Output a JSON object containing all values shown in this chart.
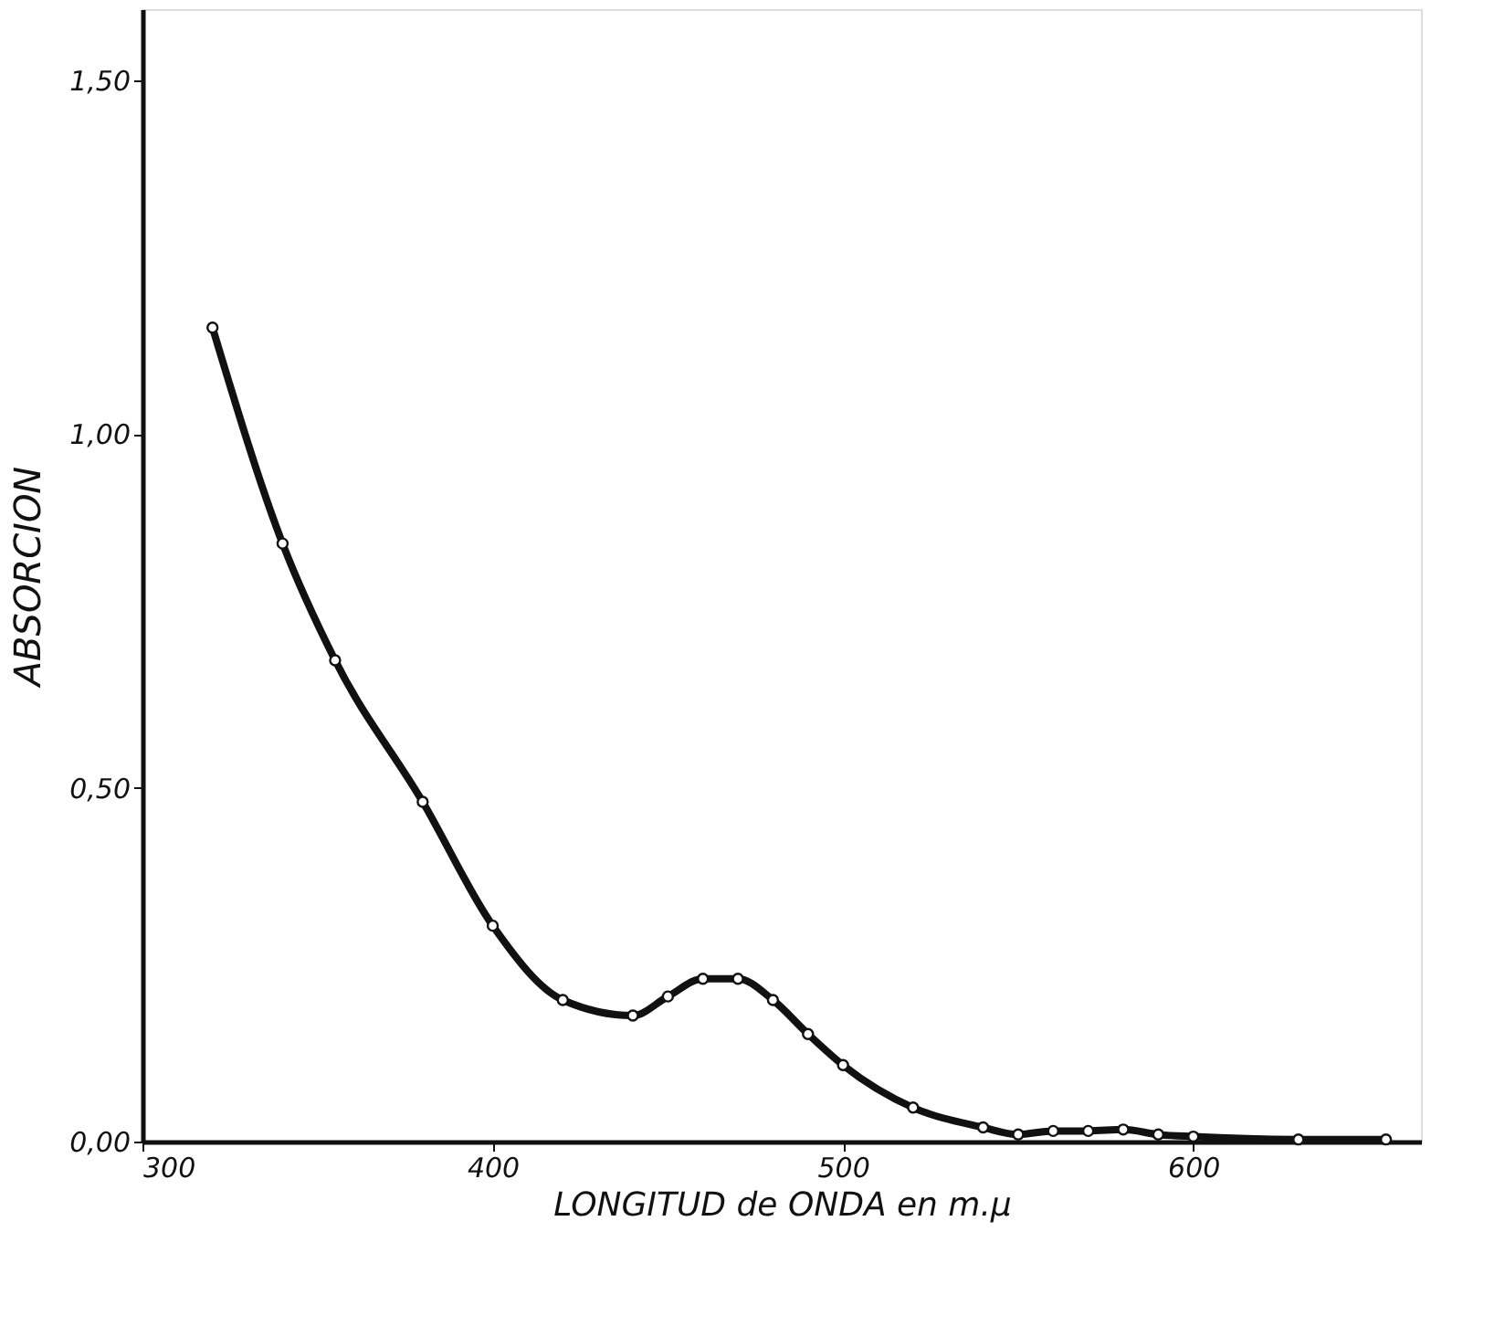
{
  "chart_data": {
    "type": "line",
    "xlabel": "LONGITUD de ONDA en m.μ",
    "ylabel": "ABSORCION",
    "x": [
      320,
      340,
      355,
      380,
      400,
      420,
      440,
      450,
      460,
      470,
      480,
      490,
      500,
      520,
      540,
      550,
      560,
      570,
      580,
      590,
      600,
      630,
      655
    ],
    "series": [
      {
        "color": "#111111",
        "values": [
          1.15,
          0.845,
          0.68,
          0.48,
          0.305,
          0.2,
          0.178,
          0.205,
          0.23,
          0.23,
          0.2,
          0.152,
          0.108,
          0.048,
          0.02,
          0.01,
          0.015,
          0.015,
          0.017,
          0.01,
          0.007,
          0.003,
          0.003
        ]
      }
    ],
    "xlim": [
      300,
      665
    ],
    "xticks": [
      300,
      400,
      500,
      600
    ],
    "ylim": [
      0,
      1.6
    ],
    "yticks": [
      {
        "value": 0,
        "label": "0,00"
      },
      {
        "value": 0.5,
        "label": "0,50"
      },
      {
        "value": 1.0,
        "label": "1,00"
      },
      {
        "value": 1.5,
        "label": "1,50"
      }
    ],
    "grid": false,
    "marker": "circle",
    "line_style": "solid"
  }
}
